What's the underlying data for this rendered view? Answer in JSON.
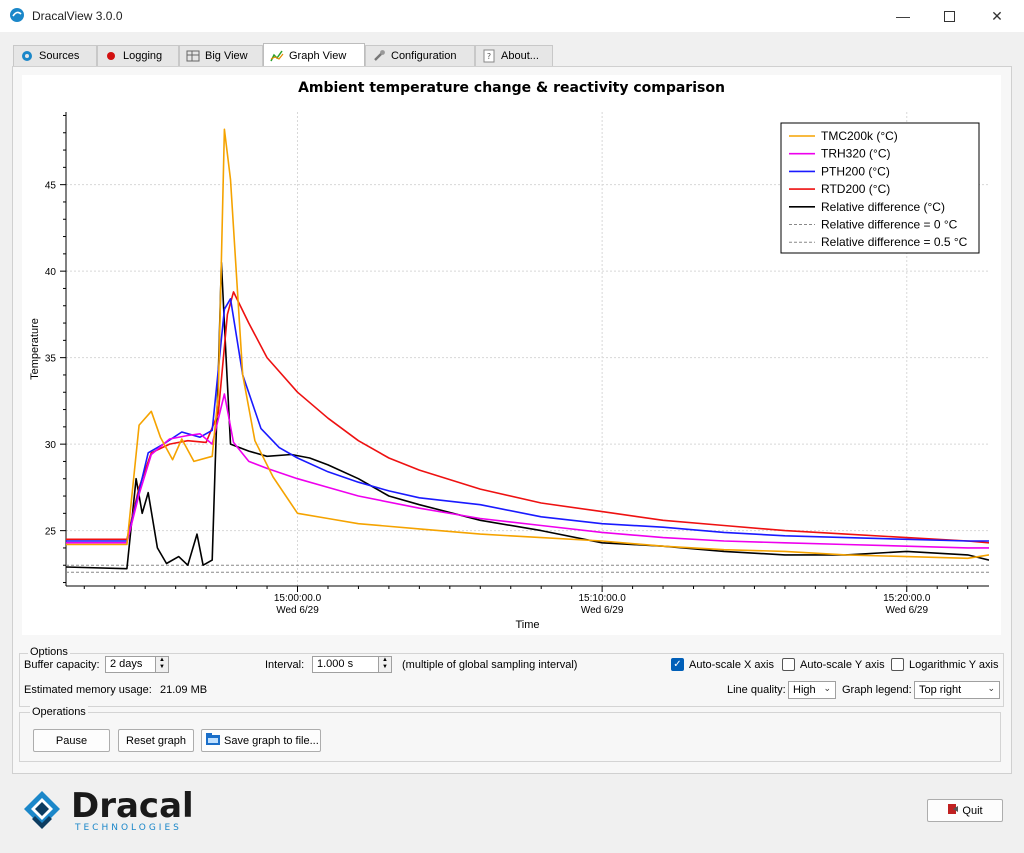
{
  "window": {
    "title": "DracalView 3.0.0",
    "colors": {
      "accent": "#1b87c9"
    }
  },
  "tabs": [
    {
      "label": "Sources",
      "icon": "gear-icon"
    },
    {
      "label": "Logging",
      "icon": "record-icon"
    },
    {
      "label": "Big View",
      "icon": "table-icon"
    },
    {
      "label": "Graph View",
      "icon": "graph-icon",
      "active": true
    },
    {
      "label": "Configuration",
      "icon": "wrench-icon"
    },
    {
      "label": "About...",
      "icon": "help-icon"
    }
  ],
  "chart_data": {
    "type": "line",
    "title": "Ambient temperature change & reactivity comparison",
    "xlabel": "Time",
    "ylabel": "Temperature",
    "ylim": [
      21.8,
      49.2
    ],
    "xlim": [
      -17.6,
      12.7
    ],
    "x_unit": "minutes relative to 15:10:00.0",
    "yticks": [
      25,
      30,
      35,
      40,
      45
    ],
    "xticks": [
      {
        "x": -10,
        "time": "15:00:00.0",
        "date": "Wed 6/29"
      },
      {
        "x": 0,
        "time": "15:10:00.0",
        "date": "Wed 6/29"
      },
      {
        "x": 10,
        "time": "15:20:00.0",
        "date": "Wed 6/29"
      }
    ],
    "grid": true,
    "legend_position": "top-right",
    "series": [
      {
        "name": "TMC200k (°C)",
        "color": "#f5a300",
        "dash": false,
        "points": [
          [
            -17.6,
            24.2
          ],
          [
            -15.6,
            24.2
          ],
          [
            -15.2,
            31.1
          ],
          [
            -14.8,
            31.9
          ],
          [
            -14.5,
            30.4
          ],
          [
            -14.1,
            29.1
          ],
          [
            -13.8,
            30.3
          ],
          [
            -13.4,
            29.0
          ],
          [
            -12.8,
            29.3
          ],
          [
            -12.6,
            32.9
          ],
          [
            -12.4,
            48.2
          ],
          [
            -12.2,
            45.3
          ],
          [
            -11.8,
            34.0
          ],
          [
            -11.4,
            30.2
          ],
          [
            -10.8,
            28.1
          ],
          [
            -10.0,
            26.0
          ],
          [
            -9.0,
            25.7
          ],
          [
            -8.0,
            25.4
          ],
          [
            -6.0,
            25.1
          ],
          [
            -4.0,
            24.8
          ],
          [
            -2.0,
            24.6
          ],
          [
            0,
            24.4
          ],
          [
            2.0,
            24.1
          ],
          [
            4.0,
            23.9
          ],
          [
            6.0,
            23.8
          ],
          [
            8.0,
            23.6
          ],
          [
            10.0,
            23.5
          ],
          [
            12.0,
            23.4
          ],
          [
            12.7,
            23.6
          ]
        ]
      },
      {
        "name": "TRH320 (°C)",
        "color": "#ee00ee",
        "dash": false,
        "points": [
          [
            -17.6,
            24.3
          ],
          [
            -15.6,
            24.3
          ],
          [
            -15.2,
            27.1
          ],
          [
            -14.8,
            29.4
          ],
          [
            -14.2,
            30.3
          ],
          [
            -13.6,
            30.5
          ],
          [
            -13.2,
            30.6
          ],
          [
            -12.8,
            30.0
          ],
          [
            -12.4,
            32.9
          ],
          [
            -12.1,
            30.1
          ],
          [
            -11.6,
            29.0
          ],
          [
            -11.0,
            28.6
          ],
          [
            -10.0,
            28.0
          ],
          [
            -9.0,
            27.5
          ],
          [
            -8.0,
            27.0
          ],
          [
            -6.0,
            26.3
          ],
          [
            -4.0,
            25.7
          ],
          [
            -2.0,
            25.3
          ],
          [
            0,
            24.9
          ],
          [
            2.0,
            24.6
          ],
          [
            4.0,
            24.4
          ],
          [
            6.0,
            24.3
          ],
          [
            8.0,
            24.2
          ],
          [
            10.0,
            24.1
          ],
          [
            12.0,
            24.0
          ],
          [
            12.7,
            24.0
          ]
        ]
      },
      {
        "name": "PTH200 (°C)",
        "color": "#1a1aff",
        "dash": false,
        "points": [
          [
            -17.6,
            24.4
          ],
          [
            -15.6,
            24.4
          ],
          [
            -15.2,
            27.3
          ],
          [
            -14.9,
            29.5
          ],
          [
            -14.4,
            30.0
          ],
          [
            -13.8,
            30.7
          ],
          [
            -13.2,
            30.4
          ],
          [
            -12.8,
            30.8
          ],
          [
            -12.4,
            37.8
          ],
          [
            -12.2,
            38.4
          ],
          [
            -11.8,
            34.0
          ],
          [
            -11.2,
            30.9
          ],
          [
            -10.6,
            29.8
          ],
          [
            -10.0,
            29.2
          ],
          [
            -9.0,
            28.4
          ],
          [
            -8.0,
            27.8
          ],
          [
            -7.0,
            27.3
          ],
          [
            -6.0,
            26.9
          ],
          [
            -4.0,
            26.5
          ],
          [
            -2.0,
            25.8
          ],
          [
            0,
            25.4
          ],
          [
            2.0,
            25.2
          ],
          [
            4.0,
            24.9
          ],
          [
            6.0,
            24.7
          ],
          [
            8.0,
            24.6
          ],
          [
            10.0,
            24.5
          ],
          [
            12.0,
            24.4
          ],
          [
            12.7,
            24.4
          ]
        ]
      },
      {
        "name": "RTD200 (°C)",
        "color": "#ee1111",
        "dash": false,
        "points": [
          [
            -17.6,
            24.5
          ],
          [
            -15.6,
            24.5
          ],
          [
            -15.2,
            27.5
          ],
          [
            -14.8,
            29.5
          ],
          [
            -14.2,
            30.0
          ],
          [
            -13.6,
            30.2
          ],
          [
            -13.0,
            30.1
          ],
          [
            -12.6,
            31.8
          ],
          [
            -12.3,
            37.5
          ],
          [
            -12.1,
            38.8
          ],
          [
            -11.6,
            37.0
          ],
          [
            -11.0,
            35.0
          ],
          [
            -10.0,
            33.0
          ],
          [
            -9.0,
            31.5
          ],
          [
            -8.0,
            30.2
          ],
          [
            -7.0,
            29.2
          ],
          [
            -6.0,
            28.5
          ],
          [
            -4.0,
            27.4
          ],
          [
            -2.0,
            26.6
          ],
          [
            0,
            26.1
          ],
          [
            2.0,
            25.6
          ],
          [
            4.0,
            25.3
          ],
          [
            6.0,
            25.0
          ],
          [
            8.0,
            24.8
          ],
          [
            10.0,
            24.6
          ],
          [
            12.0,
            24.4
          ],
          [
            12.7,
            24.3
          ]
        ]
      },
      {
        "name": "Relative difference (°C)",
        "color": "#000000",
        "dash": false,
        "points": [
          [
            -17.6,
            22.9
          ],
          [
            -15.6,
            22.8
          ],
          [
            -15.3,
            28.0
          ],
          [
            -15.1,
            26.0
          ],
          [
            -14.9,
            27.2
          ],
          [
            -14.6,
            24.0
          ],
          [
            -14.3,
            23.1
          ],
          [
            -13.9,
            23.5
          ],
          [
            -13.6,
            23.0
          ],
          [
            -13.3,
            24.8
          ],
          [
            -13.1,
            23.0
          ],
          [
            -12.8,
            23.3
          ],
          [
            -12.7,
            29.0
          ],
          [
            -12.6,
            34.0
          ],
          [
            -12.5,
            40.5
          ],
          [
            -12.35,
            35.2
          ],
          [
            -12.2,
            30.0
          ],
          [
            -11.6,
            29.6
          ],
          [
            -11.0,
            29.3
          ],
          [
            -10.2,
            29.4
          ],
          [
            -9.6,
            29.2
          ],
          [
            -9.0,
            28.8
          ],
          [
            -8.0,
            28.0
          ],
          [
            -7.0,
            27.0
          ],
          [
            -6.0,
            26.5
          ],
          [
            -4.0,
            25.6
          ],
          [
            -2.0,
            25.0
          ],
          [
            0,
            24.3
          ],
          [
            2.0,
            24.1
          ],
          [
            4.0,
            23.8
          ],
          [
            6.0,
            23.6
          ],
          [
            8.0,
            23.6
          ],
          [
            10.0,
            23.8
          ],
          [
            12.0,
            23.6
          ],
          [
            12.7,
            23.3
          ]
        ]
      },
      {
        "name": "Relative difference = 0 °C",
        "color": "#888888",
        "dash": true,
        "points": [
          [
            -17.6,
            23.0
          ],
          [
            12.7,
            23.0
          ]
        ]
      },
      {
        "name": "Relative difference = 0.5 °C",
        "color": "#888888",
        "dash": true,
        "points": [
          [
            -17.6,
            22.6
          ],
          [
            12.7,
            22.6
          ]
        ]
      }
    ]
  },
  "options": {
    "group_label": "Options",
    "buffer_label": "Buffer capacity:",
    "buffer_value": "2 days",
    "interval_label": "Interval:",
    "interval_value": "1.000 s",
    "interval_note": "(multiple of global sampling interval)",
    "autoscale_x": {
      "label": "Auto-scale X axis",
      "checked": true
    },
    "autoscale_y": {
      "label": "Auto-scale Y axis",
      "checked": false
    },
    "log_y": {
      "label": "Logarithmic Y axis",
      "checked": false
    },
    "memory_label": "Estimated memory usage:",
    "memory_value": "21.09 MB",
    "quality_label": "Line quality:",
    "quality_value": "High",
    "legend_label": "Graph legend:",
    "legend_value": "Top right"
  },
  "operations": {
    "group_label": "Operations",
    "pause": "Pause",
    "reset": "Reset graph",
    "save": "Save graph to file..."
  },
  "footer": {
    "logo_text": "Dracal",
    "logo_sub": "TECHNOLOGIES",
    "quit": "Quit"
  }
}
